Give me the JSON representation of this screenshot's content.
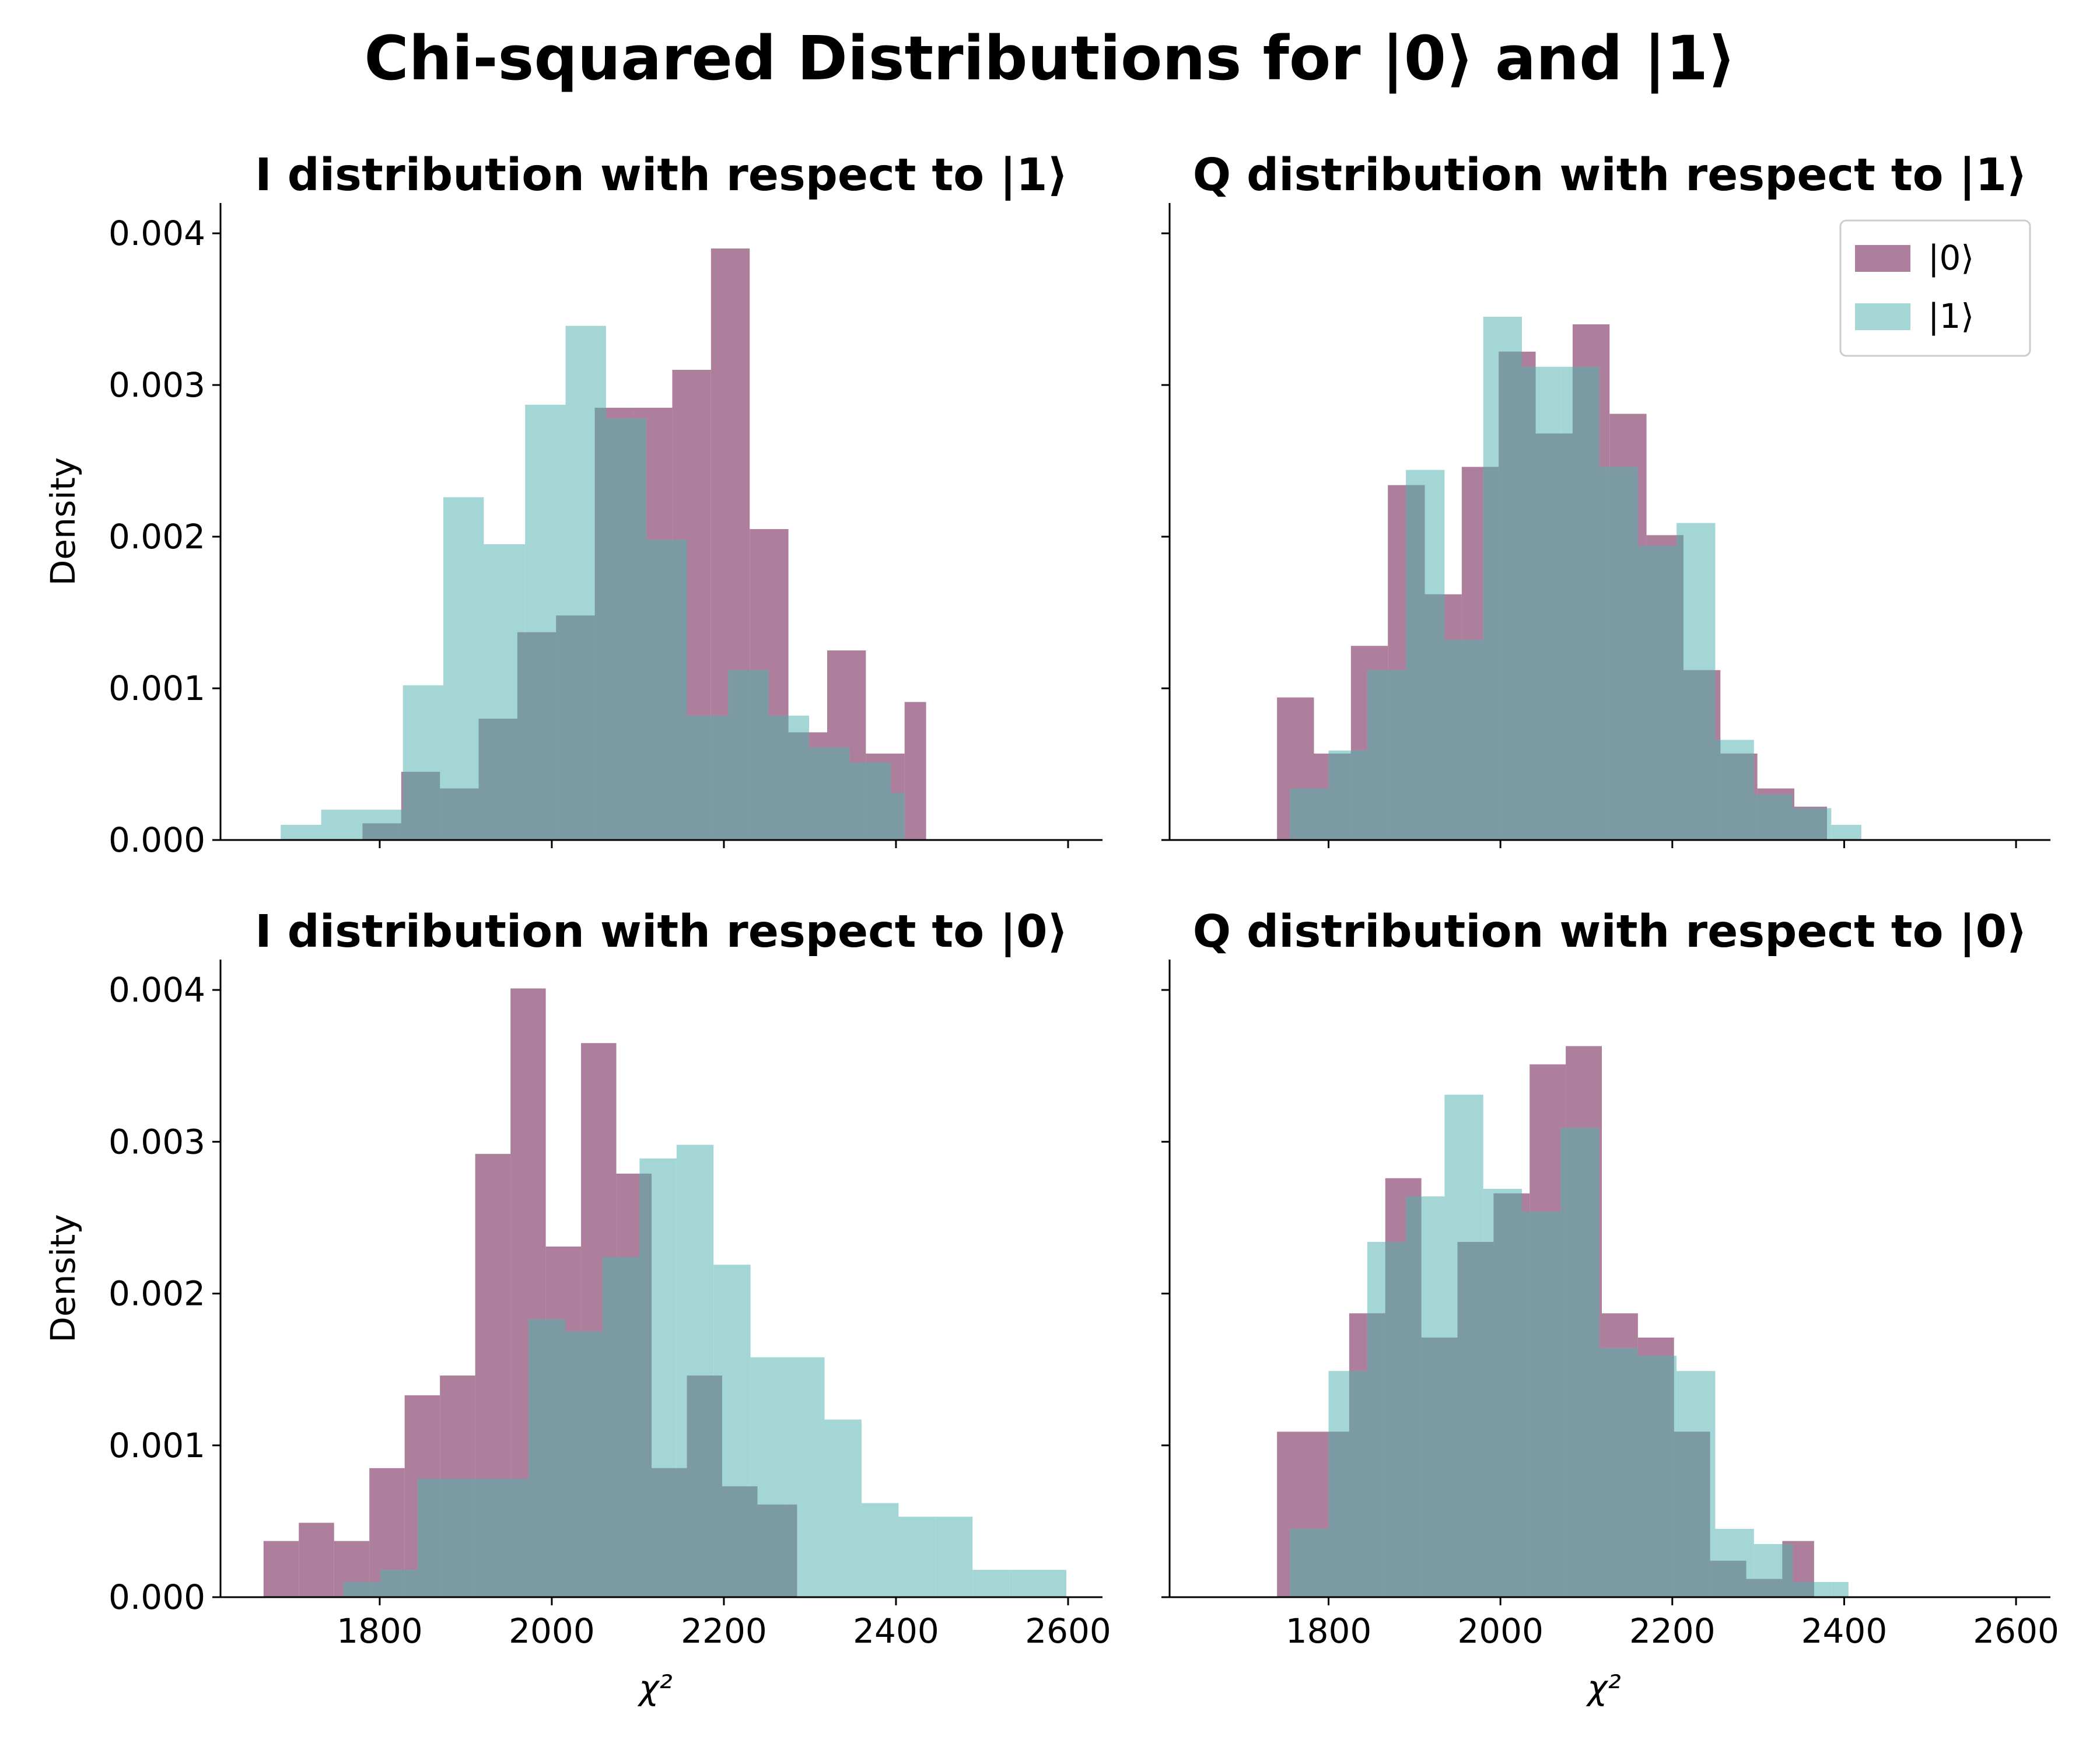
{
  "figure": {
    "title": "Chi-squared Distributions for |0⟩ and |1⟩",
    "colors": {
      "state0": "#9c6386",
      "state1": "#8ccbcb",
      "overlap": "#7b9aa3"
    },
    "legend": {
      "location": "top-right",
      "entries": [
        "|0⟩",
        "|1⟩"
      ]
    }
  },
  "chart_data": [
    {
      "type": "bar",
      "title": "I distribution with respect to |1⟩",
      "xlabel": "",
      "ylabel": "Density",
      "xlim": [
        1615,
        2640
      ],
      "ylim": [
        0,
        0.0042
      ],
      "xticks": [
        1800,
        2000,
        2200,
        2400,
        2600
      ],
      "yticks": [
        "0.000",
        "0.001",
        "0.002",
        "0.003",
        "0.004"
      ],
      "series": [
        {
          "name": "|0⟩",
          "edges": [
            1780,
            1825,
            1870,
            1915,
            1960,
            2005,
            2050,
            2095,
            2140,
            2185,
            2230,
            2275,
            2320,
            2365,
            2410,
            2435
          ],
          "values": [
            0.00011,
            0.00045,
            0.00034,
            0.0008,
            0.00137,
            0.00148,
            0.00285,
            0.00285,
            0.0031,
            0.0039,
            0.00205,
            0.00071,
            0.00125,
            0.00057,
            0.00091
          ]
        },
        {
          "name": "|1⟩",
          "edges": [
            1685,
            1732,
            1780,
            1827,
            1874,
            1921,
            1969,
            2016,
            2063,
            2110,
            2157,
            2205,
            2252,
            2299,
            2346,
            2394,
            2410
          ],
          "values": [
            0.0001,
            0.0002,
            0.0002,
            0.00102,
            0.00226,
            0.00195,
            0.00287,
            0.00339,
            0.00278,
            0.00198,
            0.00082,
            0.00112,
            0.00082,
            0.00061,
            0.00051,
            0.00031
          ]
        }
      ]
    },
    {
      "type": "bar",
      "title": "Q distribution with respect to |1⟩",
      "xlabel": "",
      "ylabel": "",
      "xlim": [
        1615,
        2640
      ],
      "ylim": [
        0,
        0.0042
      ],
      "xticks": [
        1800,
        2000,
        2200,
        2400,
        2600
      ],
      "yticks": [
        "0.000",
        "0.001",
        "0.002",
        "0.003",
        "0.004"
      ],
      "series": [
        {
          "name": "|0⟩",
          "edges": [
            1740,
            1783,
            1826,
            1869,
            1912,
            1955,
            1998,
            2041,
            2084,
            2127,
            2170,
            2213,
            2256,
            2299,
            2342,
            2380
          ],
          "values": [
            0.00094,
            0.00057,
            0.00128,
            0.00234,
            0.00162,
            0.00246,
            0.00322,
            0.00268,
            0.0034,
            0.00281,
            0.00201,
            0.00112,
            0.00057,
            0.00034,
            0.00022
          ]
        },
        {
          "name": "|1⟩",
          "edges": [
            1755,
            1800,
            1845,
            1890,
            1935,
            1980,
            2025,
            2070,
            2115,
            2160,
            2205,
            2250,
            2295,
            2340,
            2385,
            2420
          ],
          "values": [
            0.00034,
            0.00059,
            0.00112,
            0.00244,
            0.00132,
            0.00345,
            0.00312,
            0.00312,
            0.00246,
            0.00194,
            0.00209,
            0.00066,
            0.0003,
            0.00021,
            0.0001
          ]
        }
      ]
    },
    {
      "type": "bar",
      "title": "I distribution with respect to |0⟩",
      "xlabel": "χ²",
      "ylabel": "Density",
      "xlim": [
        1615,
        2640
      ],
      "ylim": [
        0,
        0.0042
      ],
      "xticks": [
        1800,
        2000,
        2200,
        2400,
        2600
      ],
      "yticks": [
        "0.000",
        "0.001",
        "0.002",
        "0.003",
        "0.004"
      ],
      "series": [
        {
          "name": "|0⟩",
          "edges": [
            1665,
            1706,
            1747,
            1788,
            1829,
            1870,
            1911,
            1952,
            1993,
            2034,
            2075,
            2116,
            2157,
            2198,
            2239,
            2285
          ],
          "values": [
            0.00037,
            0.00049,
            0.00037,
            0.00085,
            0.00133,
            0.00146,
            0.00292,
            0.00401,
            0.00231,
            0.00365,
            0.00279,
            0.00085,
            0.00146,
            0.00073,
            0.00061
          ]
        },
        {
          "name": "|1⟩",
          "edges": [
            1758,
            1801,
            1844,
            1887,
            1930,
            1973,
            2016,
            2059,
            2102,
            2145,
            2188,
            2231,
            2274,
            2317,
            2360,
            2403,
            2446,
            2489,
            2532,
            2598
          ],
          "values": [
            0.0001,
            0.00018,
            0.00078,
            0.00078,
            0.00078,
            0.00183,
            0.00175,
            0.00224,
            0.00289,
            0.00298,
            0.00219,
            0.00158,
            0.00158,
            0.00117,
            0.00062,
            0.00053,
            0.00053,
            0.00018,
            0.00018
          ]
        }
      ]
    },
    {
      "type": "bar",
      "title": "Q distribution with respect to |0⟩",
      "xlabel": "χ²",
      "ylabel": "",
      "xlim": [
        1615,
        2640
      ],
      "ylim": [
        0,
        0.0042
      ],
      "xticks": [
        1800,
        2000,
        2200,
        2400,
        2600
      ],
      "yticks": [
        "0.000",
        "0.001",
        "0.002",
        "0.003",
        "0.004"
      ],
      "series": [
        {
          "name": "|0⟩",
          "edges": [
            1740,
            1782,
            1824,
            1866,
            1908,
            1950,
            1992,
            2034,
            2076,
            2118,
            2160,
            2202,
            2244,
            2286,
            2328,
            2365
          ],
          "values": [
            0.00109,
            0.00109,
            0.00187,
            0.00276,
            0.00171,
            0.00234,
            0.00266,
            0.00351,
            0.00363,
            0.00187,
            0.00171,
            0.00109,
            0.00024,
            0.00012,
            0.00037
          ]
        },
        {
          "name": "|1⟩",
          "edges": [
            1755,
            1800,
            1845,
            1890,
            1935,
            1980,
            2025,
            2070,
            2115,
            2160,
            2205,
            2250,
            2295,
            2340,
            2385,
            2405
          ],
          "values": [
            0.00045,
            0.00149,
            0.00234,
            0.00264,
            0.00331,
            0.00269,
            0.00254,
            0.00309,
            0.00164,
            0.00159,
            0.00149,
            0.00045,
            0.00035,
            0.0001,
            0.0001
          ]
        }
      ]
    }
  ]
}
